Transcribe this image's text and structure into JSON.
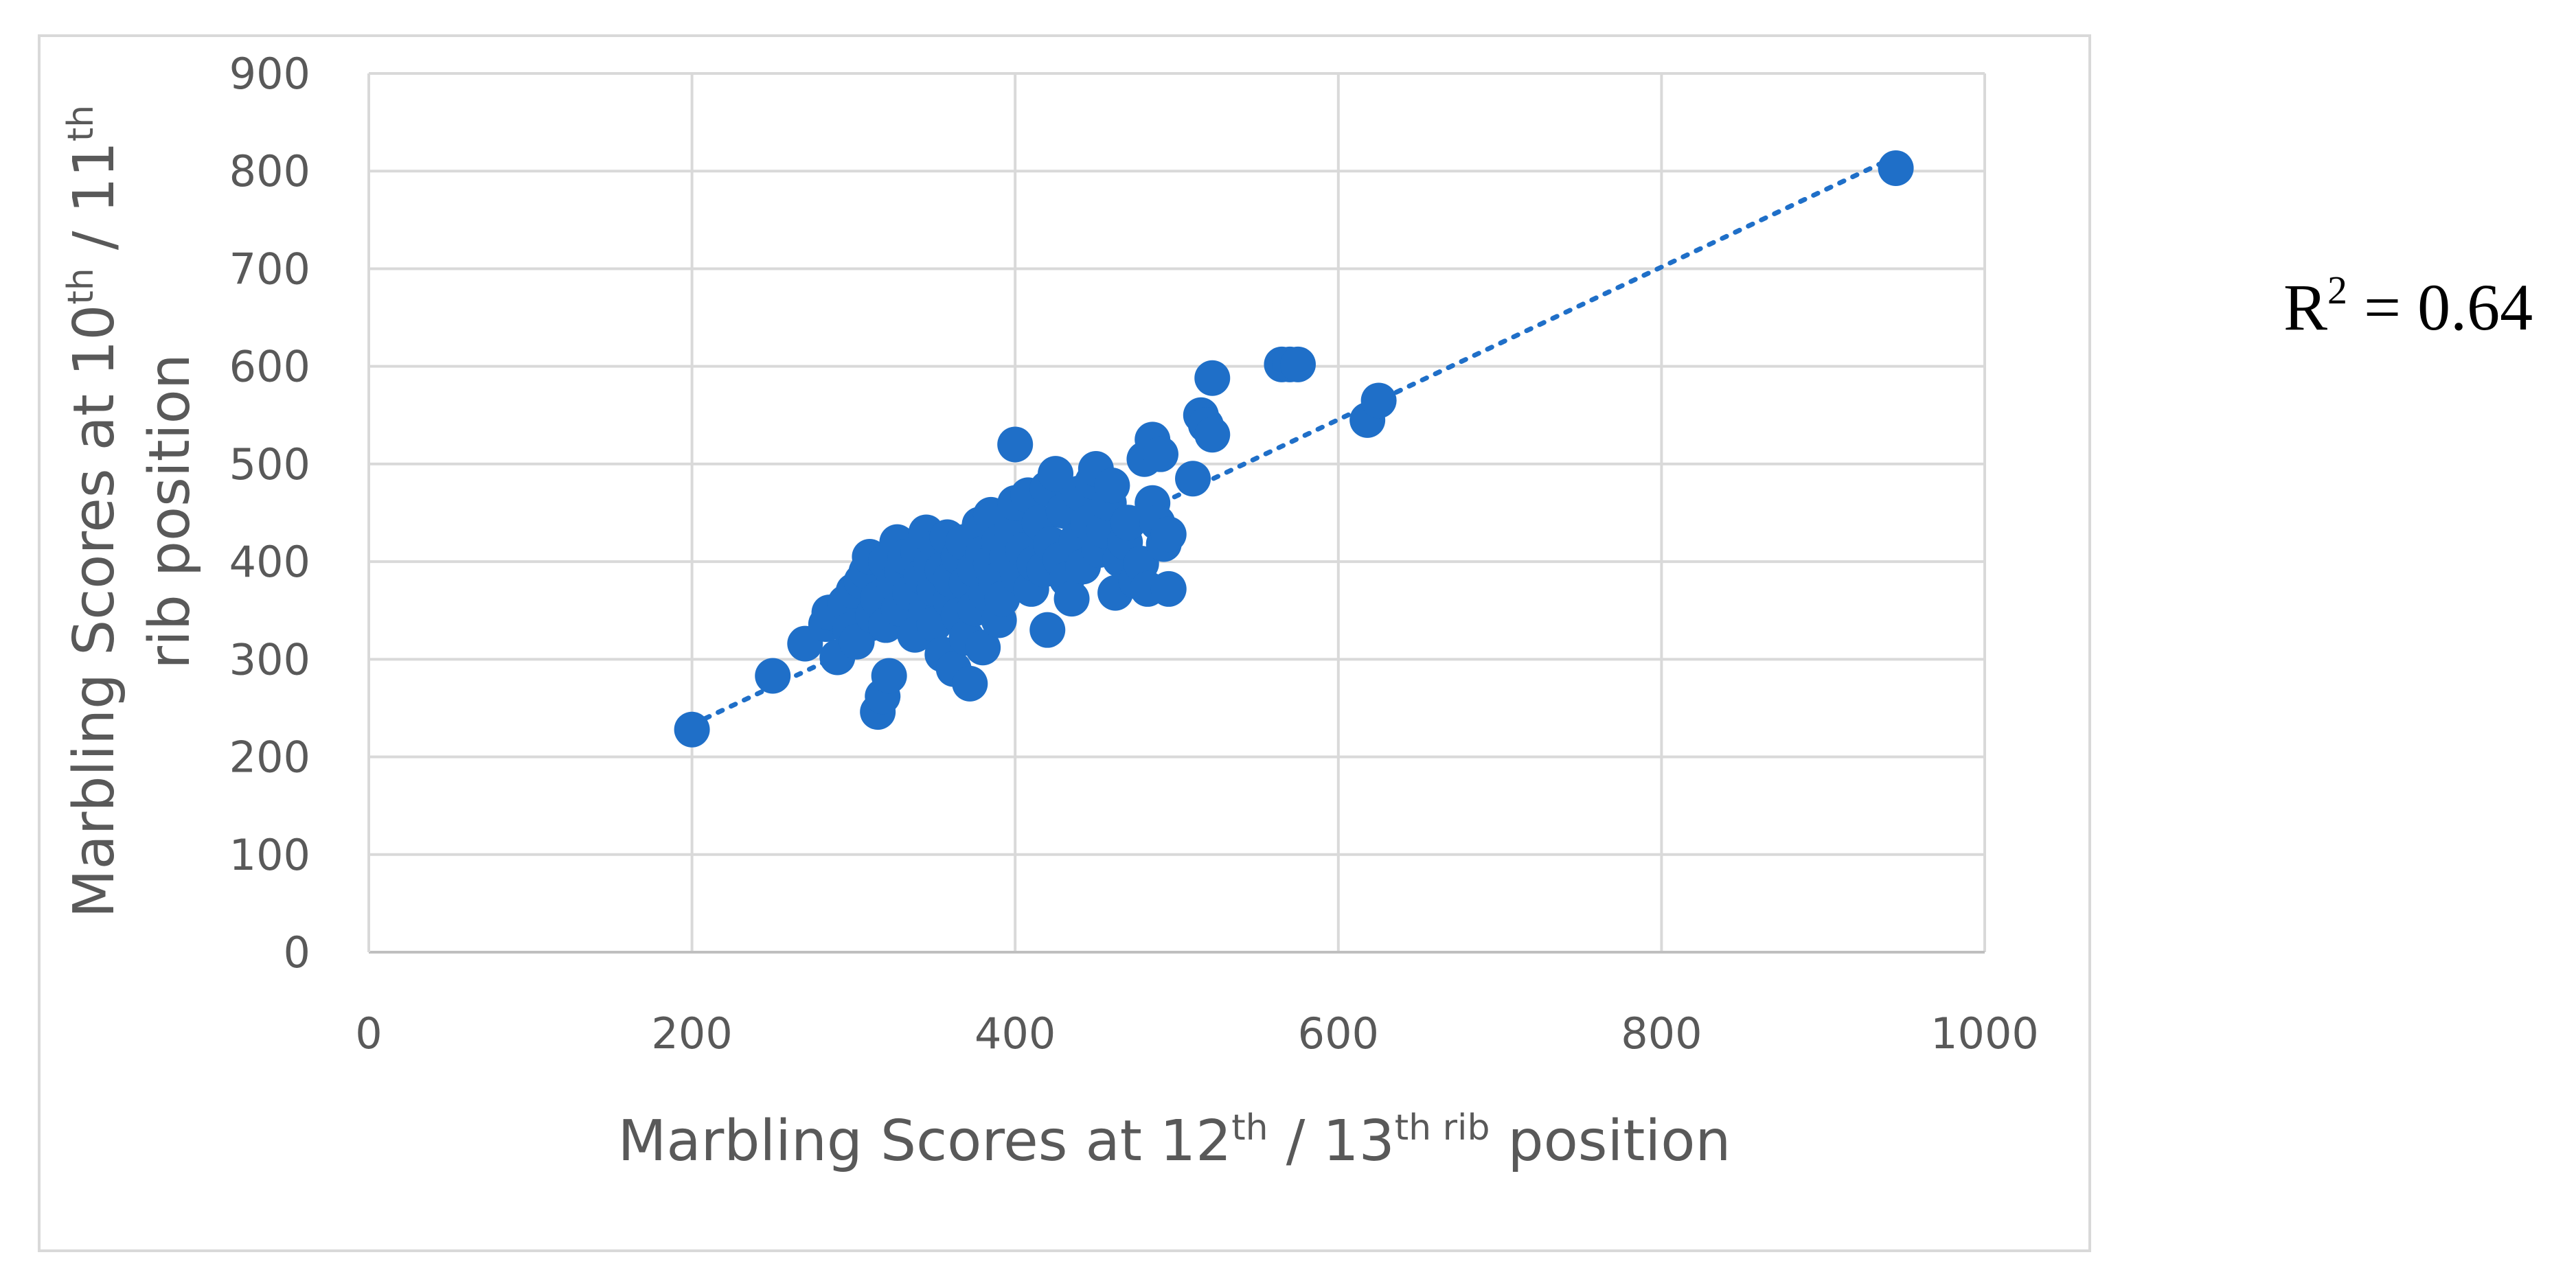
{
  "chart_data": {
    "type": "scatter",
    "title": "",
    "xlabel": {
      "parts": [
        "Marbling Scores at 12",
        "th",
        " / 13",
        "th rib",
        " position"
      ]
    },
    "ylabel": {
      "line1_parts": [
        "Marbling Scores at 10",
        "th",
        " / 11",
        "th"
      ],
      "line2": "rib position"
    },
    "xlim": [
      0,
      1000
    ],
    "ylim": [
      0,
      900
    ],
    "xticks": [
      0,
      200,
      400,
      600,
      800,
      1000
    ],
    "yticks": [
      0,
      100,
      200,
      300,
      400,
      500,
      600,
      700,
      800,
      900
    ],
    "grid": true,
    "marker_color": "#1f6fc8",
    "trendline": {
      "style": "dotted",
      "color": "#1f6fc8",
      "from": [
        200,
        233
      ],
      "to": [
        945,
        815
      ]
    },
    "annotation": {
      "prefix": "R",
      "sup": "2",
      "suffix": " = 0.64"
    },
    "series": [
      {
        "points": [
          [
            200,
            228
          ],
          [
            250,
            283
          ],
          [
            270,
            316
          ],
          [
            283,
            336
          ],
          [
            285,
            348
          ],
          [
            290,
            302
          ],
          [
            295,
            358
          ],
          [
            298,
            330
          ],
          [
            300,
            370
          ],
          [
            302,
            318
          ],
          [
            305,
            380
          ],
          [
            308,
            390
          ],
          [
            310,
            405
          ],
          [
            312,
            345
          ],
          [
            315,
            362
          ],
          [
            315,
            246
          ],
          [
            318,
            262
          ],
          [
            320,
            400
          ],
          [
            320,
            335
          ],
          [
            322,
            283
          ],
          [
            325,
            378
          ],
          [
            327,
            420
          ],
          [
            328,
            352
          ],
          [
            330,
            390
          ],
          [
            332,
            405
          ],
          [
            335,
            368
          ],
          [
            338,
            325
          ],
          [
            340,
            410
          ],
          [
            342,
            385
          ],
          [
            345,
            430
          ],
          [
            345,
            350
          ],
          [
            348,
            398
          ],
          [
            350,
            372
          ],
          [
            350,
            336
          ],
          [
            352,
            415
          ],
          [
            355,
            392
          ],
          [
            355,
            305
          ],
          [
            358,
            425
          ],
          [
            360,
            360
          ],
          [
            360,
            382
          ],
          [
            362,
            290
          ],
          [
            365,
            405
          ],
          [
            365,
            345
          ],
          [
            368,
            420
          ],
          [
            370,
            378
          ],
          [
            370,
            322
          ],
          [
            372,
            275
          ],
          [
            375,
            392
          ],
          [
            375,
            352
          ],
          [
            378,
            438
          ],
          [
            380,
            408
          ],
          [
            380,
            312
          ],
          [
            382,
            368
          ],
          [
            385,
            398
          ],
          [
            385,
            448
          ],
          [
            388,
            380
          ],
          [
            390,
            420
          ],
          [
            390,
            340
          ],
          [
            392,
            362
          ],
          [
            395,
            405
          ],
          [
            398,
            432
          ],
          [
            400,
            520
          ],
          [
            400,
            460
          ],
          [
            402,
            385
          ],
          [
            405,
            412
          ],
          [
            408,
            468
          ],
          [
            410,
            372
          ],
          [
            412,
            398
          ],
          [
            415,
            440
          ],
          [
            418,
            392
          ],
          [
            420,
            330
          ],
          [
            420,
            475
          ],
          [
            422,
            418
          ],
          [
            425,
            490
          ],
          [
            428,
            402
          ],
          [
            430,
            452
          ],
          [
            432,
            382
          ],
          [
            435,
            362
          ],
          [
            438,
            422
          ],
          [
            440,
            470
          ],
          [
            442,
            395
          ],
          [
            445,
            440
          ],
          [
            448,
            482
          ],
          [
            450,
            495
          ],
          [
            452,
            412
          ],
          [
            455,
            432
          ],
          [
            458,
            460
          ],
          [
            460,
            478
          ],
          [
            462,
            368
          ],
          [
            465,
            402
          ],
          [
            468,
            420
          ],
          [
            470,
            440
          ],
          [
            475,
            380
          ],
          [
            478,
            398
          ],
          [
            480,
            505
          ],
          [
            482,
            372
          ],
          [
            485,
            525
          ],
          [
            485,
            460
          ],
          [
            488,
            440
          ],
          [
            490,
            510
          ],
          [
            492,
            418
          ],
          [
            495,
            428
          ],
          [
            495,
            372
          ],
          [
            510,
            485
          ],
          [
            515,
            550
          ],
          [
            518,
            540
          ],
          [
            522,
            588
          ],
          [
            522,
            530
          ],
          [
            565,
            602
          ],
          [
            570,
            602
          ],
          [
            575,
            602
          ],
          [
            618,
            545
          ],
          [
            625,
            565
          ],
          [
            945,
            803
          ]
        ]
      }
    ]
  }
}
